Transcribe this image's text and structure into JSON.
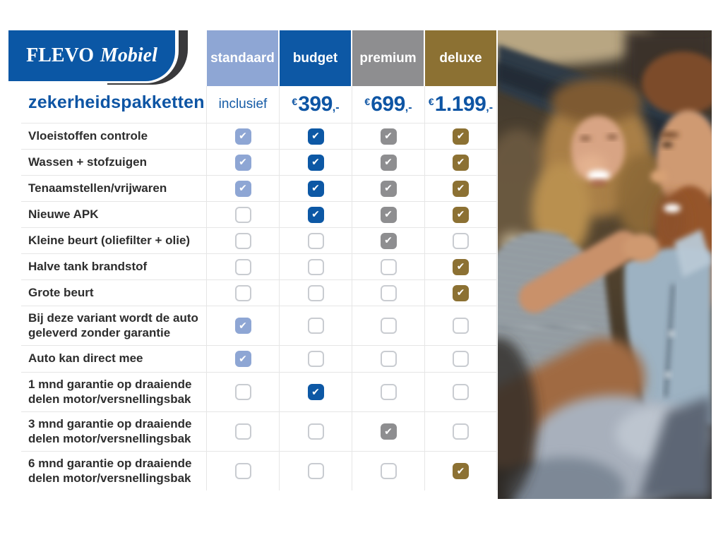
{
  "brand": {
    "primary": "FLEVO",
    "secondary": "Mobiel"
  },
  "title": "zekerheidspakketten",
  "check_glyph": "✔",
  "colors": {
    "standaard": "#8ea6d4",
    "budget": "#0d58a5",
    "premium": "#8e8e90",
    "deluxe": "#8c7133",
    "price_text": "#0e55a4",
    "logo_blue": "#0b57a5"
  },
  "columns": [
    {
      "id": "standaard",
      "label": "standaard",
      "color": "#8ea6d4",
      "price": {
        "text": "inclusief"
      }
    },
    {
      "id": "budget",
      "label": "budget",
      "color": "#0d58a5",
      "price": {
        "currency": "€",
        "amount": "399",
        "suffix": ",-"
      }
    },
    {
      "id": "premium",
      "label": "premium",
      "color": "#8e8e90",
      "price": {
        "currency": "€",
        "amount": "699",
        "suffix": ",-"
      }
    },
    {
      "id": "deluxe",
      "label": "deluxe",
      "color": "#8c7133",
      "price": {
        "currency": "€",
        "amount": "1.199",
        "suffix": ",-"
      }
    }
  ],
  "rows": [
    {
      "label": "Vloeistoffen controle",
      "checks": [
        true,
        true,
        true,
        true
      ]
    },
    {
      "label": "Wassen + stofzuigen",
      "checks": [
        true,
        true,
        true,
        true
      ]
    },
    {
      "label": "Tenaamstellen/vrijwaren",
      "checks": [
        true,
        true,
        true,
        true
      ]
    },
    {
      "label": "Nieuwe APK",
      "checks": [
        false,
        true,
        true,
        true
      ]
    },
    {
      "label": "Kleine beurt (oliefilter + olie)",
      "checks": [
        false,
        false,
        true,
        false
      ]
    },
    {
      "label": "Halve tank brandstof",
      "checks": [
        false,
        false,
        false,
        true
      ]
    },
    {
      "label": "Grote beurt",
      "checks": [
        false,
        false,
        false,
        true
      ]
    },
    {
      "label": "Bij deze variant wordt de auto geleverd zonder garantie",
      "checks": [
        true,
        false,
        false,
        false
      ]
    },
    {
      "label": "Auto kan direct mee",
      "checks": [
        true,
        false,
        false,
        false
      ]
    },
    {
      "label": "1 mnd garantie op draaiende delen motor/versnellingsbak",
      "checks": [
        false,
        true,
        false,
        false
      ]
    },
    {
      "label": "3 mnd garantie op draaiende delen motor/versnellingsbak",
      "checks": [
        false,
        false,
        true,
        false
      ]
    },
    {
      "label": "6 mnd garantie op draaiende delen motor/versnellingsbak",
      "checks": [
        false,
        false,
        false,
        true
      ]
    }
  ],
  "photo": {
    "alt": "Smiling couple in a car: woman with curly blonde hair in a striped top touching the beard of a man in a denim shirt"
  }
}
